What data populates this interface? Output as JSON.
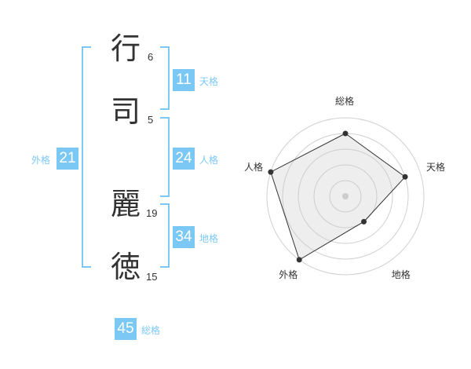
{
  "name": {
    "characters": [
      {
        "char": "行",
        "strokes": "6"
      },
      {
        "char": "司",
        "strokes": "5"
      },
      {
        "char": "麗",
        "strokes": "19"
      },
      {
        "char": "徳",
        "strokes": "15"
      }
    ]
  },
  "fortunes": {
    "tenkaku": {
      "label": "天格",
      "value": "11"
    },
    "jinkaku": {
      "label": "人格",
      "value": "24"
    },
    "chikaku": {
      "label": "地格",
      "value": "34"
    },
    "gaikaku": {
      "label": "外格",
      "value": "21"
    },
    "soukaku": {
      "label": "総格",
      "value": "45"
    }
  },
  "colors": {
    "accent": "#7cc8f5",
    "text": "#333333"
  },
  "chart_data": {
    "type": "radar",
    "axes": [
      "総格",
      "天格",
      "地格",
      "外格",
      "人格"
    ],
    "values": [
      4,
      4,
      2,
      5,
      5
    ],
    "range": [
      0,
      5
    ],
    "grid": true
  }
}
